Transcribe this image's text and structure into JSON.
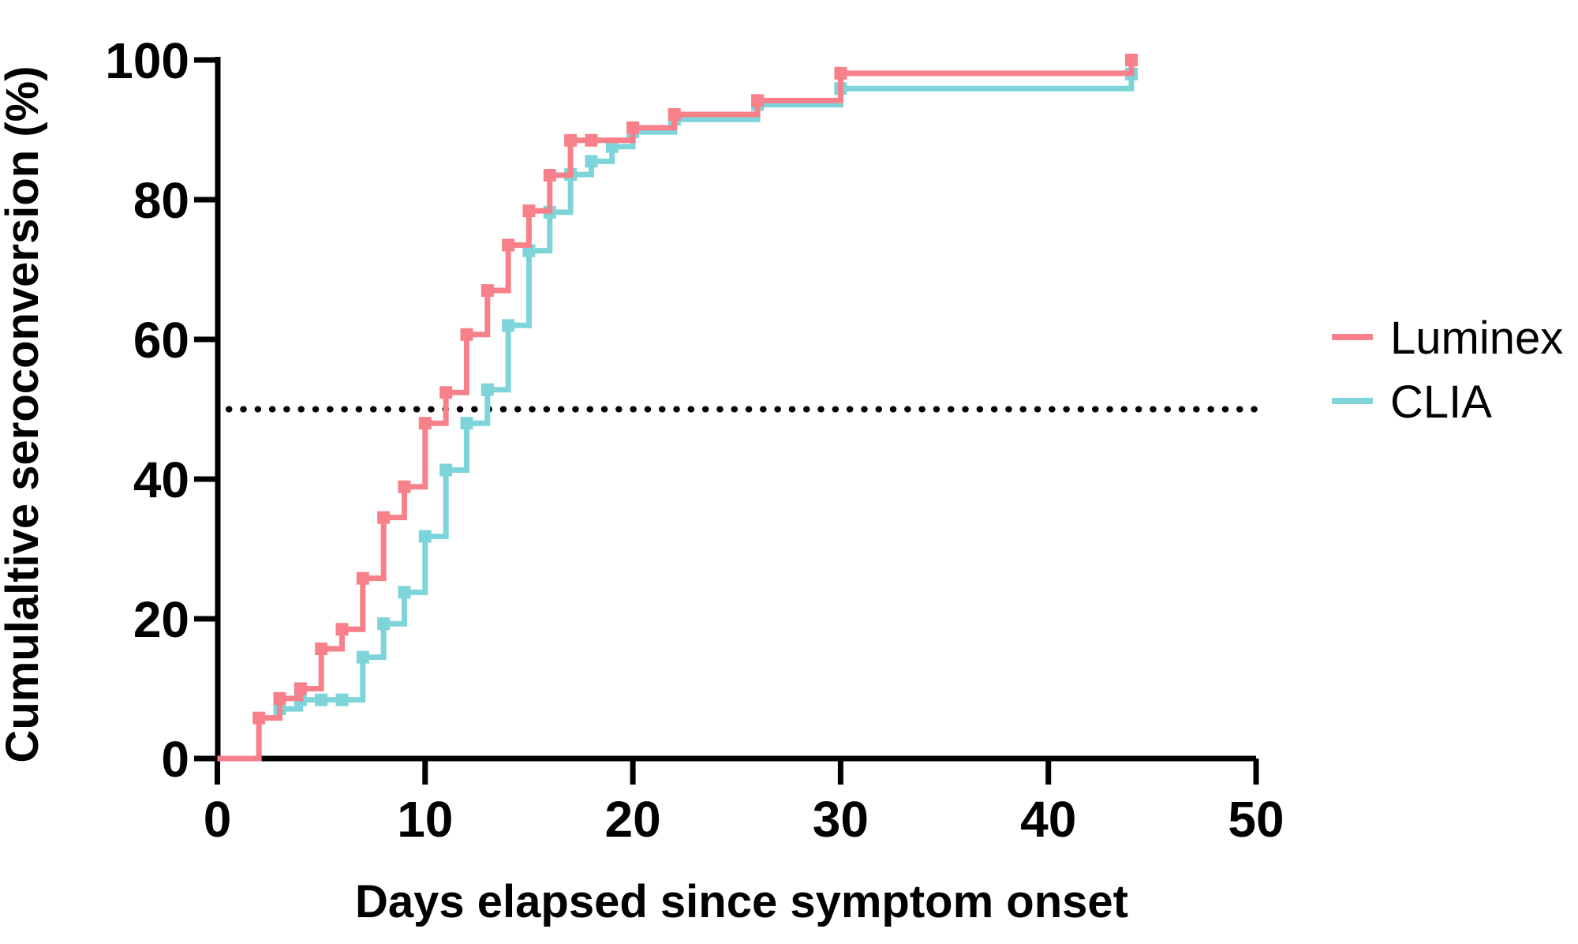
{
  "chart_data": {
    "type": "line",
    "subtype": "step-after",
    "title": "",
    "xlabel": "Days elapsed since symptom onset",
    "ylabel": "Cumulaltive seroconversion (%)",
    "xlim": [
      0,
      50
    ],
    "ylim": [
      0,
      100
    ],
    "x_ticks": [
      0,
      10,
      20,
      30,
      40,
      50
    ],
    "y_ticks": [
      0,
      20,
      40,
      60,
      80,
      100
    ],
    "grid": false,
    "legend_position": "right-center",
    "marker": "square",
    "reference_line": {
      "y": 50,
      "style": "dotted",
      "color": "#000000"
    },
    "series": [
      {
        "name": "CLIA",
        "color": "#7DD5DA",
        "origin": null,
        "points": [
          [
            3,
            7.1
          ],
          [
            4,
            8.4
          ],
          [
            5,
            8.4
          ],
          [
            6,
            8.4
          ],
          [
            7,
            14.5
          ],
          [
            8,
            19.3
          ],
          [
            9,
            23.8
          ],
          [
            10,
            31.8
          ],
          [
            11,
            41.3
          ],
          [
            12,
            48.0
          ],
          [
            13,
            52.8
          ],
          [
            14,
            62.0
          ],
          [
            15,
            72.7
          ],
          [
            16,
            78.2
          ],
          [
            17,
            83.6
          ],
          [
            18,
            85.5
          ],
          [
            19,
            87.6
          ],
          [
            20,
            89.7
          ],
          [
            22,
            91.5
          ],
          [
            26,
            93.6
          ],
          [
            30,
            95.9
          ],
          [
            44,
            98.0
          ]
        ]
      },
      {
        "name": "Luminex",
        "color": "#F8808A",
        "origin": [
          0,
          0
        ],
        "points": [
          [
            2,
            5.8
          ],
          [
            3,
            8.6
          ],
          [
            4,
            10.0
          ],
          [
            5,
            15.7
          ],
          [
            6,
            18.5
          ],
          [
            7,
            25.8
          ],
          [
            8,
            34.5
          ],
          [
            9,
            38.9
          ],
          [
            10,
            48.0
          ],
          [
            11,
            52.4
          ],
          [
            12,
            60.7
          ],
          [
            13,
            67.0
          ],
          [
            14,
            73.5
          ],
          [
            15,
            78.4
          ],
          [
            16,
            83.5
          ],
          [
            17,
            88.5
          ],
          [
            18,
            88.5
          ],
          [
            20,
            90.3
          ],
          [
            22,
            92.2
          ],
          [
            26,
            94.2
          ],
          [
            30,
            98.1
          ],
          [
            44,
            100.0
          ]
        ]
      }
    ]
  },
  "legend": {
    "items": [
      {
        "label": "Luminex",
        "color": "#F8808A"
      },
      {
        "label": "CLIA",
        "color": "#7DD5DA"
      }
    ]
  },
  "axis_color": "#000000"
}
